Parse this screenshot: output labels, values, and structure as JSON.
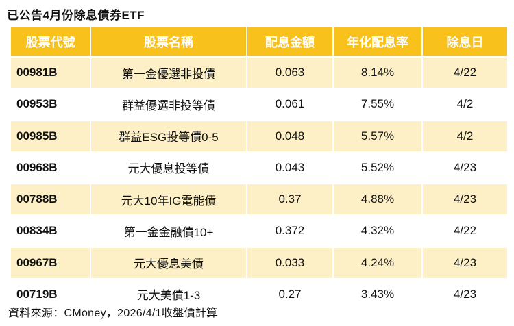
{
  "title": "已公告4月份除息債券ETF",
  "colors": {
    "header_bg": "#f9c11c",
    "header_text": "#ffffff",
    "stripe": "#fdf0c6"
  },
  "table": {
    "headers": [
      "股票代號",
      "股票名稱",
      "配息金額",
      "年化配息率",
      "除息日"
    ],
    "rows": [
      {
        "code": "00981B",
        "name": "第一金優選非投債",
        "amount": "0.063",
        "yield": "8.14%",
        "date": "4/22"
      },
      {
        "code": "00953B",
        "name": "群益優選非投等債",
        "amount": "0.061",
        "yield": "7.55%",
        "date": "4/2"
      },
      {
        "code": "00985B",
        "name": "群益ESG投等債0-5",
        "amount": "0.048",
        "yield": "5.57%",
        "date": "4/2"
      },
      {
        "code": "00968B",
        "name": "元大優息投等債",
        "amount": "0.043",
        "yield": "5.52%",
        "date": "4/23"
      },
      {
        "code": "00788B",
        "name": "元大10年IG電能債",
        "amount": "0.37",
        "yield": "4.88%",
        "date": "4/23"
      },
      {
        "code": "00834B",
        "name": "第一金金融債10+",
        "amount": "0.372",
        "yield": "4.32%",
        "date": "4/22"
      },
      {
        "code": "00967B",
        "name": "元大優息美債",
        "amount": "0.033",
        "yield": "4.24%",
        "date": "4/23"
      },
      {
        "code": "00719B",
        "name": "元大美債1-3",
        "amount": "0.27",
        "yield": "3.43%",
        "date": "4/23"
      }
    ]
  },
  "source": "資料來源：CMoney，2026/4/1收盤價計算"
}
